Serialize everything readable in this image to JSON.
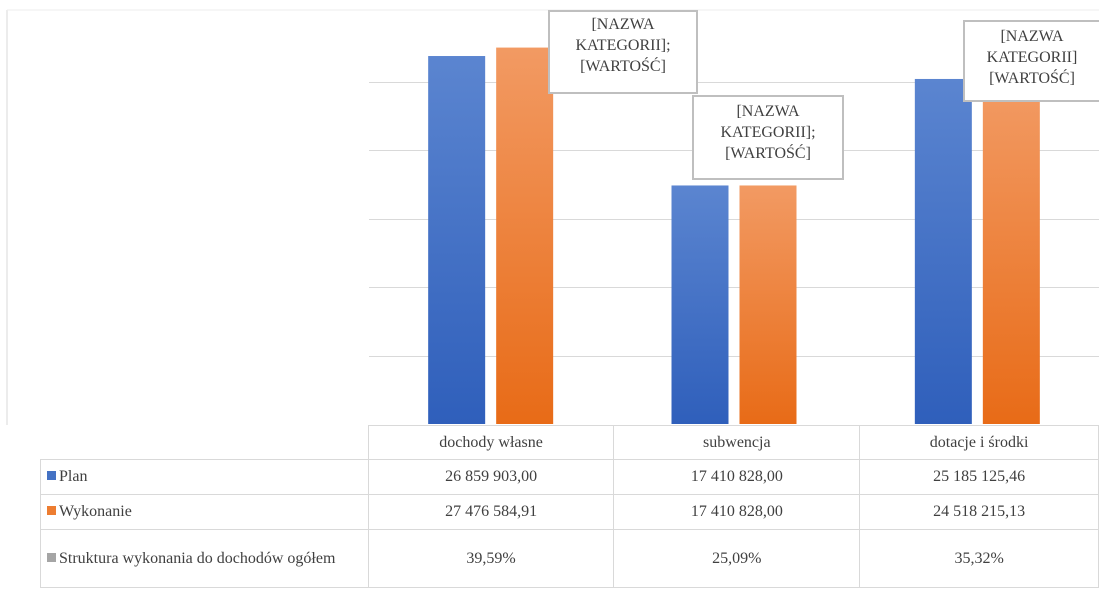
{
  "chart_data": {
    "type": "bar",
    "categories": [
      "dochody własne",
      "subwencja",
      "dotacje i środki"
    ],
    "series": [
      {
        "name": "Plan",
        "values": [
          26859903.0,
          17410828.0,
          25185125.46
        ],
        "display": [
          "26 859 903,00",
          "17 410 828,00",
          "25 185 125,46"
        ],
        "color": "#4472c4"
      },
      {
        "name": "Wykonanie",
        "values": [
          27476584.91,
          17410828.0,
          24518215.13
        ],
        "display": [
          "27 476 584,91",
          "17 410 828,00",
          "24 518 215,13"
        ],
        "color": "#ed7d31"
      },
      {
        "name": "Struktura wykonania do dochodów ogółem",
        "values": [
          39.59,
          25.09,
          35.32
        ],
        "display": [
          "39,59%",
          "25,09%",
          "35,32%"
        ],
        "color": "#a5a5a5"
      }
    ],
    "grid": true,
    "legend": "data-table"
  },
  "labels": {
    "line1": "[NAZWA",
    "line2a": "KATEGORII];",
    "line2b": "KATEGORII]",
    "line3": "[WARTOŚĆ]"
  }
}
